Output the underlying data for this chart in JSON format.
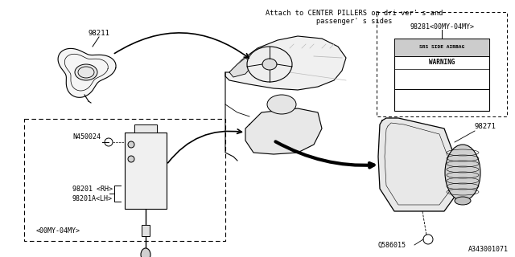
{
  "bg_color": "#ffffff",
  "line_color": "#000000",
  "gray_color": "#888888",
  "light_gray": "#bbbbbb",
  "diagram_id": "A343001071",
  "attach_note_line1": "Attach to CENTER PILLERS on dri ver' s and",
  "attach_note_line2": "            passenger' s sides",
  "label_98211": "98211",
  "label_98281": "98281<00MY-04MY>",
  "label_98271": "98271",
  "label_98201": "98201 <RH>",
  "label_98201A": "98201A<LH>",
  "label_N450024": "N450024",
  "label_Q586015": "Q586015",
  "label_date": "<00MY-04MY>",
  "warn_line1": "SRS SIDE AIRBAG",
  "warn_line2": "WARNING",
  "diagram_ref": "A343001071"
}
